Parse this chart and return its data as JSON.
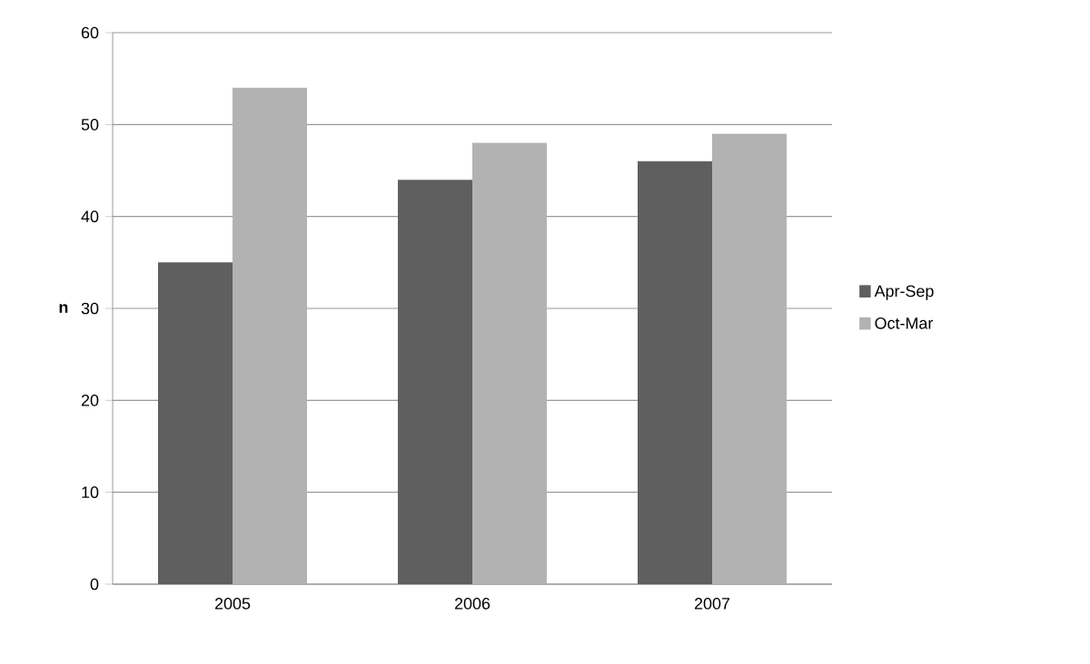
{
  "chart_data": {
    "type": "bar",
    "ylabel": "n",
    "categories": [
      "2005",
      "2006",
      "2007"
    ],
    "series": [
      {
        "name": "Apr-Sep",
        "color": "#5f5f5f",
        "values": [
          35,
          44,
          46
        ]
      },
      {
        "name": "Oct-Mar",
        "color": "#b2b2b2",
        "values": [
          54,
          48,
          49
        ]
      }
    ],
    "ylim": [
      0,
      60
    ],
    "yticks": [
      0,
      10,
      20,
      30,
      40,
      50,
      60
    ],
    "grid": "y",
    "legend": "right"
  }
}
